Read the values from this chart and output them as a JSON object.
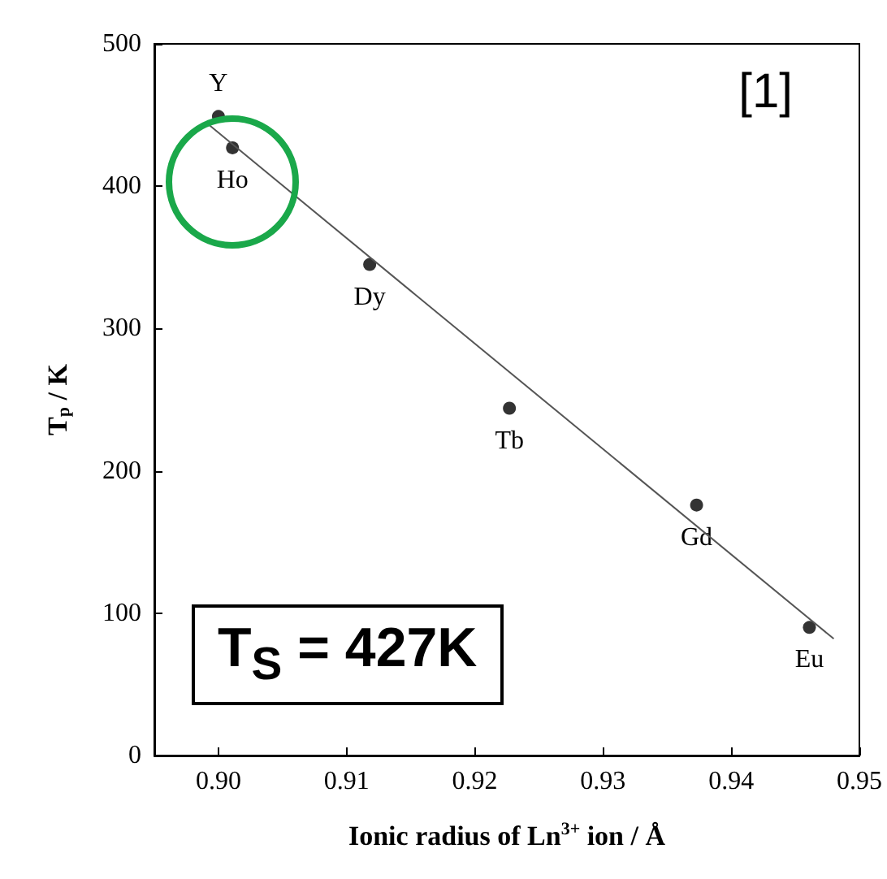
{
  "chart_data": {
    "type": "scatter",
    "xlabel": "Ionic radius of Ln$^{3+}$ ion / Å",
    "ylabel": "T$_{p}$ / K",
    "series": [
      {
        "color": "#000000",
        "marker": "circle",
        "x": [
          0.9,
          0.9011,
          0.9118,
          0.9227,
          0.9373,
          0.9461
        ],
        "values": [
          449,
          427,
          345,
          244,
          176,
          90
        ]
      },
      {
        "type": "line",
        "marker": "none",
        "color": "#555555",
        "x": [
          0.899,
          0.948
        ],
        "values": [
          445,
          82
        ]
      }
    ],
    "xlim": [
      0.895,
      0.95
    ],
    "xticks": [
      {
        "value": 0.9,
        "label": "0.90"
      },
      {
        "value": 0.91,
        "label": "0.91"
      },
      {
        "value": 0.92,
        "label": "0.92"
      },
      {
        "value": 0.93,
        "label": "0.93"
      },
      {
        "value": 0.94,
        "label": "0.94"
      },
      {
        "value": 0.95,
        "label": "0.95"
      }
    ],
    "ylim": [
      0,
      500
    ],
    "yticks": [
      0,
      100,
      200,
      300,
      400,
      500
    ],
    "grid": false,
    "annotations": [
      {
        "text": "Y",
        "x": 0.9,
        "y": 449
      },
      {
        "text": "Ho",
        "x": 0.9011,
        "y": 427
      },
      {
        "text": "Dy",
        "x": 0.9118,
        "y": 345
      },
      {
        "text": "Tb",
        "x": 0.9227,
        "y": 244
      },
      {
        "text": "Gd",
        "x": 0.9373,
        "y": 176
      },
      {
        "text": "Eu",
        "x": 0.9461,
        "y": 90
      },
      "[1]",
      "T$_{S}$ = 427K"
    ]
  }
}
